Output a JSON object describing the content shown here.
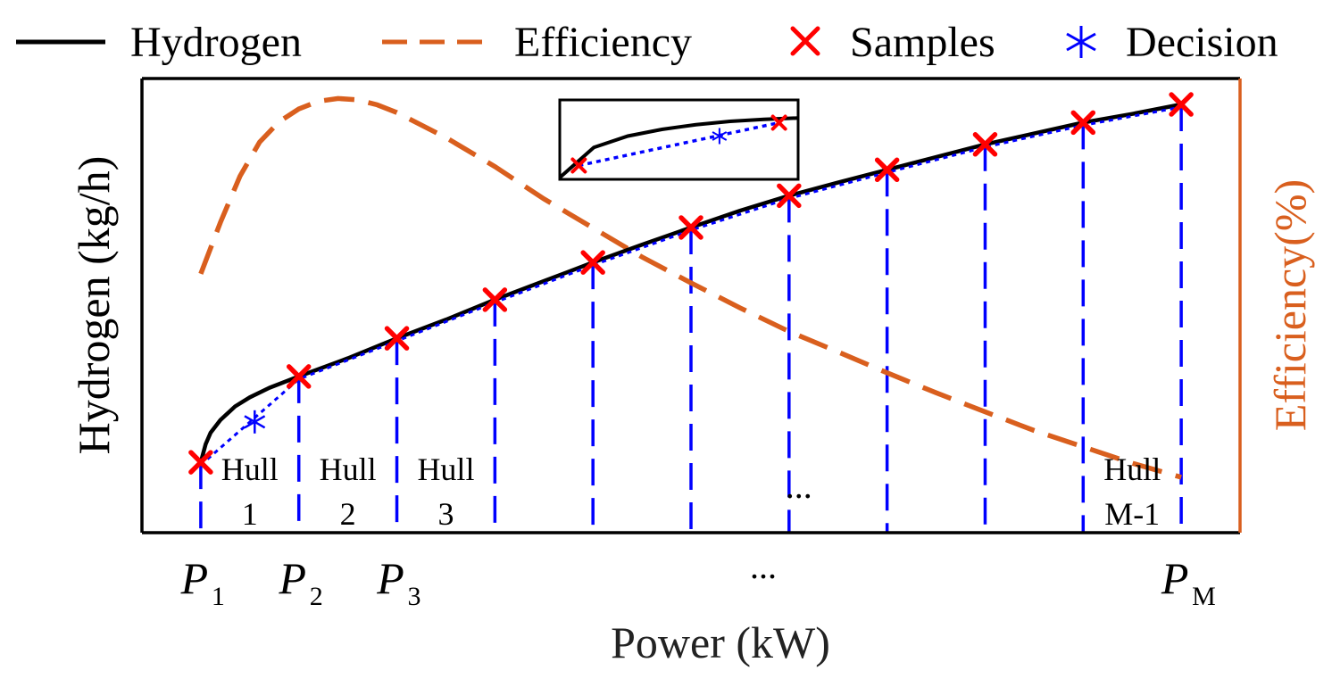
{
  "colors": {
    "hydrogen": "#000000",
    "efficiency": "#d95f1e",
    "samples": "#ff0000",
    "decision": "#0000ff",
    "segments": "#0000ff",
    "axis": "#000000",
    "right_axis": "#d95f1e"
  },
  "legend": {
    "placement": "top",
    "items": [
      {
        "key": "hydrogen",
        "label": "Hydrogen",
        "marker": "solid-line"
      },
      {
        "key": "efficiency",
        "label": "Efficiency",
        "marker": "dashed-line"
      },
      {
        "key": "samples",
        "label": "Samples",
        "marker": "cross"
      },
      {
        "key": "decision",
        "label": "Decision",
        "marker": "asterisk"
      }
    ]
  },
  "chart_data": {
    "type": "line",
    "xlabel": "Power (kW)",
    "ylabel": "Hydrogen (kg/h)",
    "y2label": "Efficiency(%)",
    "x_ticks": [
      {
        "base": "P",
        "sub": "1",
        "x": 0
      },
      {
        "base": "P",
        "sub": "2",
        "x": 1
      },
      {
        "base": "P",
        "sub": "3",
        "x": 2
      },
      {
        "base": "P",
        "sub": "M",
        "x": 10
      }
    ],
    "x_ellipsis": "...",
    "xlim": [
      -0.6,
      10.6
    ],
    "ylim": [
      0,
      1
    ],
    "y2lim": [
      0,
      1
    ],
    "series": [
      {
        "name": "Hydrogen",
        "key": "hydrogen",
        "style": "solid",
        "x": [
          0,
          0.05,
          0.1,
          0.2,
          0.35,
          0.5,
          0.7,
          1,
          1.5,
          2,
          2.5,
          3,
          3.5,
          4,
          4.5,
          5,
          5.5,
          6,
          6.5,
          7,
          7.5,
          8,
          8.5,
          9,
          9.5,
          10
        ],
        "y": [
          0.155,
          0.195,
          0.22,
          0.248,
          0.278,
          0.298,
          0.319,
          0.344,
          0.384,
          0.428,
          0.469,
          0.513,
          0.554,
          0.595,
          0.634,
          0.672,
          0.709,
          0.742,
          0.771,
          0.799,
          0.827,
          0.855,
          0.879,
          0.903,
          0.922,
          0.943
        ]
      },
      {
        "name": "Efficiency",
        "key": "efficiency",
        "style": "dashed",
        "x": [
          0,
          0.2,
          0.4,
          0.6,
          0.8,
          1,
          1.2,
          1.4,
          1.6,
          1.8,
          2,
          2.5,
          3,
          3.5,
          4,
          4.5,
          5,
          5.5,
          6,
          6.5,
          7,
          7.5,
          8,
          8.5,
          9,
          9.5,
          10
        ],
        "y": [
          0.57,
          0.683,
          0.785,
          0.86,
          0.905,
          0.933,
          0.95,
          0.956,
          0.953,
          0.942,
          0.925,
          0.87,
          0.806,
          0.735,
          0.671,
          0.607,
          0.55,
          0.495,
          0.443,
          0.398,
          0.352,
          0.308,
          0.266,
          0.225,
          0.189,
          0.153,
          0.122
        ]
      },
      {
        "name": "Samples",
        "key": "samples",
        "style": "cross",
        "x": [
          0,
          1,
          2,
          3,
          4,
          5,
          6,
          7,
          8,
          9,
          10
        ],
        "y": [
          0.155,
          0.344,
          0.428,
          0.513,
          0.595,
          0.672,
          0.742,
          0.799,
          0.855,
          0.903,
          0.943
        ]
      },
      {
        "name": "Decision",
        "key": "decision",
        "style": "asterisk",
        "x": [
          0.55
        ],
        "y": [
          0.244
        ]
      }
    ],
    "segment_lines": [
      0,
      1,
      2,
      3,
      4,
      5,
      6,
      7,
      8,
      9,
      10
    ],
    "hull_labels": [
      {
        "line1": "Hull",
        "line2": "1",
        "x": 0.5
      },
      {
        "line1": "Hull",
        "line2": "2",
        "x": 1.5
      },
      {
        "line1": "Hull",
        "line2": "3",
        "x": 2.5
      },
      {
        "line1": "Hull",
        "line2": "M-1",
        "x": 9.5
      }
    ],
    "inner_ellipsis": {
      "text": "...",
      "x": 6.1
    },
    "inset": {
      "description": "zoom of a segment",
      "curve_y": [
        0.0,
        0.45,
        0.62,
        0.72,
        0.79,
        0.84,
        0.87,
        0.89
      ],
      "samples": [
        [
          0.08,
          0.18
        ],
        [
          0.92,
          0.82
        ]
      ],
      "decision": [
        0.67,
        0.62
      ]
    }
  }
}
